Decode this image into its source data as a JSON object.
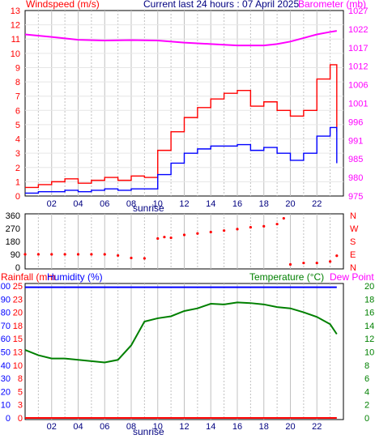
{
  "top_bar": {
    "left_label": "Windspeed (m/s)",
    "center_label": "Current last 24 hours : 07 April 2025",
    "right_label": "Barometer (mb)"
  },
  "colors": {
    "windspeed": "#ff0000",
    "gust": "#ff0000",
    "average": "#0000ff",
    "barometer": "#ff00ff",
    "direction": "#ff0000",
    "rainfall": "#ff0000",
    "humidity": "#0000ff",
    "temperature": "#008000",
    "dewpoint": "#ff00ff",
    "grid": "#c0c0c0",
    "axis": "#000000"
  },
  "chart_data": [
    {
      "id": "wind",
      "type": "line",
      "x_ticks": [
        "02",
        "04",
        "06",
        "08",
        "10",
        "12",
        "14",
        "16",
        "18",
        "20",
        "22"
      ],
      "x_annotation": "sunrise",
      "left_axis": {
        "label": "Windspeed (m/s)",
        "ticks": [
          0,
          1,
          2,
          3,
          4,
          5,
          6,
          7,
          8,
          9,
          10,
          11,
          12,
          13
        ],
        "tick_labels": [
          "0",
          "1",
          "2",
          "3",
          "4",
          "5",
          "6",
          "7",
          "8",
          "9",
          "10",
          "11",
          "12",
          "13"
        ],
        "ylim": [
          0,
          13
        ]
      },
      "right_axis": {
        "label": "Barometer (mb)",
        "tick_labels": [
          "975",
          "980",
          "985",
          "991",
          "996",
          "1001",
          "1006",
          "1012",
          "1017",
          "1022",
          "1027"
        ],
        "ylim": [
          975,
          1027
        ]
      },
      "series": [
        {
          "role": "gust",
          "x": [
            0,
            1,
            2,
            3,
            4,
            5,
            6,
            7,
            8,
            9,
            10,
            11,
            12,
            13,
            14,
            15,
            16,
            17,
            18,
            19,
            20,
            21,
            22,
            23,
            23.5
          ],
          "values": [
            0.6,
            0.8,
            1.0,
            1.2,
            0.9,
            1.1,
            1.3,
            1.1,
            1.4,
            1.3,
            3.2,
            4.5,
            5.5,
            6.2,
            6.8,
            7.2,
            7.4,
            6.3,
            6.6,
            6.0,
            5.6,
            6.0,
            8.2,
            9.2,
            4.5
          ]
        },
        {
          "role": "average",
          "x": [
            0,
            1,
            2,
            3,
            4,
            5,
            6,
            7,
            8,
            9,
            10,
            11,
            12,
            13,
            14,
            15,
            16,
            17,
            18,
            19,
            20,
            21,
            22,
            23,
            23.5
          ],
          "values": [
            0.2,
            0.3,
            0.3,
            0.4,
            0.3,
            0.4,
            0.5,
            0.4,
            0.5,
            0.5,
            1.5,
            2.3,
            3.0,
            3.3,
            3.5,
            3.5,
            3.6,
            3.2,
            3.4,
            3.0,
            2.5,
            3.0,
            4.2,
            4.8,
            2.3
          ]
        },
        {
          "role": "barometer",
          "x": [
            0,
            2,
            4,
            6,
            8,
            10,
            12,
            14,
            16,
            18,
            19,
            20,
            21,
            22,
            23,
            23.5
          ],
          "values": [
            1020.3,
            1019.6,
            1018.8,
            1018.6,
            1018.7,
            1018.6,
            1018.0,
            1017.6,
            1017.2,
            1017.2,
            1017.6,
            1018.3,
            1019.3,
            1020.3,
            1021.0,
            1021.3
          ]
        }
      ]
    },
    {
      "id": "direction",
      "type": "scatter",
      "left_axis": {
        "tick_labels": [
          "0",
          "90",
          "180",
          "270",
          "360"
        ],
        "ylim": [
          0,
          360
        ]
      },
      "right_axis": {
        "tick_labels": [
          "N",
          "E",
          "S",
          "W",
          "N"
        ]
      },
      "x": [
        0,
        1,
        2,
        3,
        4,
        5,
        6,
        7,
        8,
        9,
        10,
        10.5,
        11,
        12,
        13,
        14,
        15,
        16,
        17,
        18,
        19,
        19.5,
        20,
        21,
        22,
        23,
        23.5
      ],
      "values": [
        90,
        90,
        90,
        90,
        90,
        90,
        90,
        82,
        65,
        62,
        200,
        210,
        205,
        225,
        235,
        245,
        255,
        265,
        278,
        285,
        300,
        340,
        20,
        30,
        30,
        40,
        80
      ]
    },
    {
      "id": "temperature_humidity",
      "type": "line",
      "x_ticks": [
        "02",
        "04",
        "06",
        "08",
        "10",
        "12",
        "14",
        "16",
        "18",
        "20",
        "22"
      ],
      "x_annotation": "sunrise",
      "header": {
        "rainfall_label": "Rainfall (mm",
        "humidity_label": "Humidity (%)",
        "temperature_label": "Temperature (°C)",
        "dewpoint_label": "Dew Point"
      },
      "rain_axis": {
        "tick_labels": [
          "0",
          "3",
          "5",
          "8",
          "10",
          "13",
          "15",
          "18",
          "20",
          "23",
          "25"
        ]
      },
      "humidity_axis": {
        "tick_labels": [
          "0",
          "10",
          "20",
          "30",
          "40",
          "50",
          "60",
          "70",
          "80",
          "90",
          "100"
        ],
        "ylim": [
          0,
          100
        ]
      },
      "temperature_axis": {
        "tick_labels": [
          "0",
          "2",
          "4",
          "6",
          "8",
          "10",
          "12",
          "14",
          "16",
          "18",
          "20"
        ],
        "ylim": [
          0,
          20
        ]
      },
      "series": [
        {
          "role": "temperature",
          "x": [
            0,
            1,
            2,
            3,
            4,
            5,
            6,
            7,
            8,
            9,
            10,
            11,
            12,
            13,
            14,
            15,
            16,
            17,
            18,
            19,
            20,
            21,
            22,
            23,
            23.5
          ],
          "values": [
            10.3,
            9.5,
            9.0,
            9.0,
            8.8,
            8.6,
            8.4,
            8.8,
            11.0,
            14.6,
            15.1,
            15.4,
            16.2,
            16.6,
            17.3,
            17.2,
            17.5,
            17.4,
            17.2,
            16.8,
            16.6,
            16.0,
            15.3,
            14.2,
            12.7
          ]
        },
        {
          "role": "humidity",
          "x": [
            0,
            23.5
          ],
          "values": [
            99,
            99
          ]
        },
        {
          "role": "rainfall",
          "x": [
            0,
            23.5
          ],
          "values": [
            0,
            0
          ]
        }
      ]
    }
  ]
}
